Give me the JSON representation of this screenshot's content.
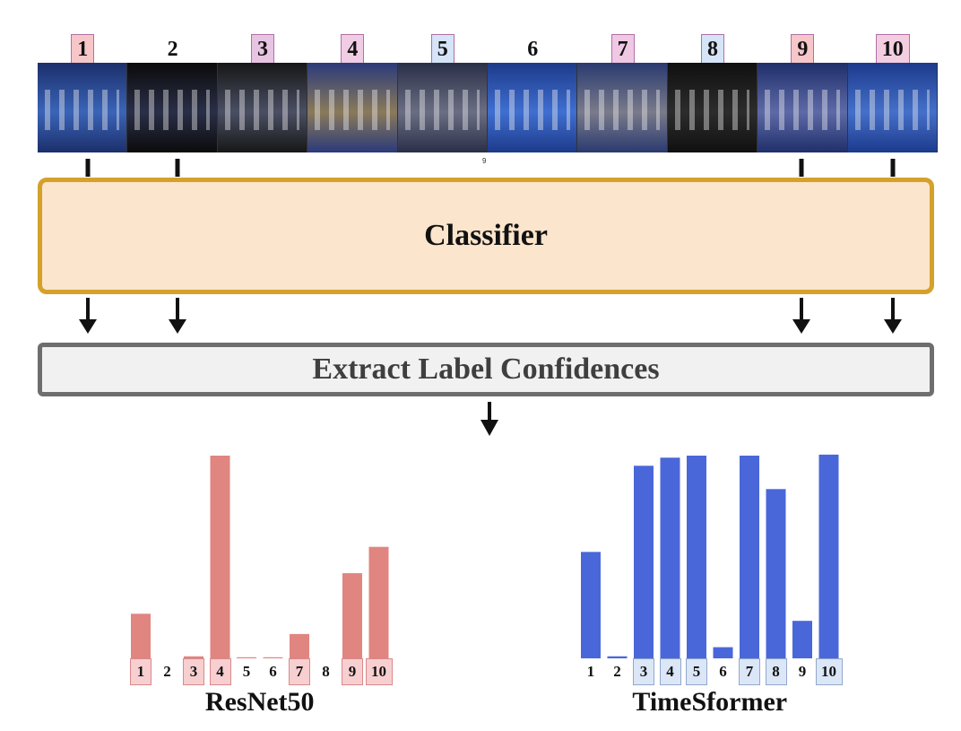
{
  "frames": [
    {
      "label": "1",
      "highlight": "#f6c6c9"
    },
    {
      "label": "2",
      "highlight": ""
    },
    {
      "label": "3",
      "highlight": "#e8c4e3"
    },
    {
      "label": "4",
      "highlight": "#f0cde4"
    },
    {
      "label": "5",
      "highlight": "#d5e4f7"
    },
    {
      "label": "6",
      "highlight": ""
    },
    {
      "label": "7",
      "highlight": "#efc8e3"
    },
    {
      "label": "8",
      "highlight": "#d5e4f7"
    },
    {
      "label": "9",
      "highlight": "#f6c6c9"
    },
    {
      "label": "10",
      "highlight": "#f3cde0"
    }
  ],
  "strip_index": "9",
  "classifier": {
    "label": "Classifier"
  },
  "extract": {
    "label": "Extract Label Confidences"
  },
  "chart_data": [
    {
      "type": "bar",
      "title": "ResNet50",
      "categories": [
        "1",
        "2",
        "3",
        "4",
        "5",
        "6",
        "7",
        "8",
        "9",
        "10"
      ],
      "values": [
        0.22,
        0.0,
        0.01,
        1.0,
        0.004,
        0.004,
        0.12,
        0.0,
        0.42,
        0.55
      ],
      "highlighted": [
        "1",
        "3",
        "4",
        "7",
        "9",
        "10"
      ],
      "ylim": [
        0,
        1
      ],
      "color": "#e0857f",
      "highlight_color": "#f7cfd0"
    },
    {
      "type": "bar",
      "title": "TimeSformer",
      "categories": [
        "1",
        "2",
        "3",
        "4",
        "5",
        "6",
        "7",
        "8",
        "9",
        "10"
      ],
      "values": [
        0.525,
        0.01,
        0.95,
        0.99,
        1.0,
        0.055,
        1.0,
        0.835,
        0.185,
        1.005
      ],
      "highlighted": [
        "3",
        "4",
        "5",
        "7",
        "8",
        "10"
      ],
      "ylim": [
        0,
        1
      ],
      "color": "#4a67d9",
      "highlight_color": "#dbe6f7"
    }
  ]
}
